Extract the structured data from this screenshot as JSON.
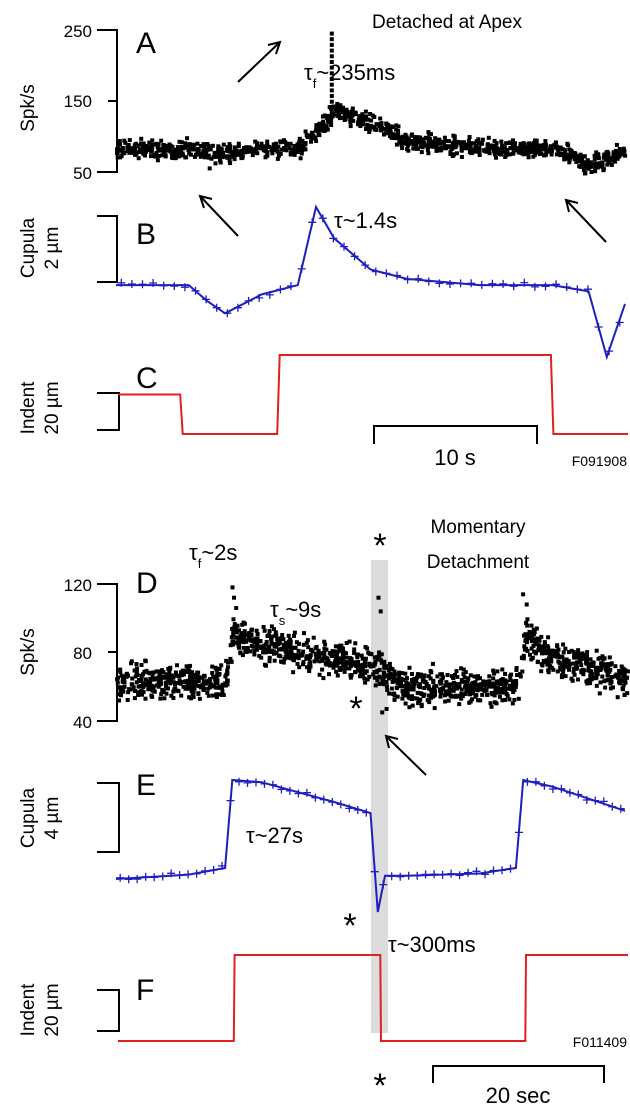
{
  "figure": {
    "top": {
      "title": "Detached at Apex",
      "code": "F091908",
      "scalebar_label": "10 s",
      "panels": {
        "A": {
          "letter": "A",
          "ylabel": "Spk/s",
          "yticks": [
            "250",
            "150",
            "50"
          ],
          "annotation_main": "τ",
          "annotation_sub": "f",
          "annotation_rest": "~235ms"
        },
        "B": {
          "letter": "B",
          "ylabel": "Cupula",
          "scale": "2 µm",
          "annotation": "τ~1.4s"
        },
        "C": {
          "letter": "C",
          "ylabel": "Indent",
          "scale": "20 µm"
        }
      }
    },
    "bottom": {
      "title_line1": "Momentary",
      "title_line2": "Detachment",
      "code": "F011409",
      "scalebar_label": "20 sec",
      "panels": {
        "D": {
          "letter": "D",
          "ylabel": "Spk/s",
          "yticks": [
            "120",
            "80",
            "40"
          ],
          "tf_main": "τ",
          "tf_sub": "f",
          "tf_rest": "~2s",
          "ts_main": "τ",
          "ts_sub": "s",
          "ts_rest": "~9s"
        },
        "E": {
          "letter": "E",
          "ylabel": "Cupula",
          "scale": "4 µm",
          "annotation_slow": "τ~27s",
          "annotation_fast": "τ~300ms"
        },
        "F": {
          "letter": "F",
          "ylabel": "Indent",
          "scale": "20 µm"
        }
      },
      "marker": "*"
    },
    "colors": {
      "spikes": "#000000",
      "cupula": "#1f1fbf",
      "indent": "#e02020",
      "marker": "#1a9a1a",
      "shade": "#dcdcdc"
    }
  },
  "chart_data": [
    {
      "type": "scatter",
      "panel": "A",
      "title": "Detached at Apex",
      "ylabel": "Spk/s",
      "ylim": [
        50,
        250
      ],
      "x_unit": "s",
      "x": [
        0,
        2,
        4,
        5,
        6,
        8,
        10,
        12,
        14,
        16,
        18,
        20,
        22,
        24,
        26,
        28
      ],
      "series": [
        {
          "values": [
            82,
            82,
            82,
            80,
            74,
            82,
            82,
            135,
            120,
            92,
            88,
            84,
            82,
            82,
            60,
            80
          ]
        }
      ],
      "peak": 245,
      "dips": [
        55,
        48
      ]
    },
    {
      "type": "line",
      "panel": "B",
      "ylabel": "Cupula",
      "x_unit": "s",
      "x": [
        0,
        2,
        4,
        5,
        6,
        8,
        10,
        11,
        12,
        14,
        16,
        18,
        20,
        22,
        24,
        26,
        27,
        28
      ],
      "series": [
        {
          "values": [
            0,
            0,
            0,
            -0.5,
            -0.9,
            -0.3,
            0,
            2.5,
            1.5,
            0.5,
            0.2,
            0.1,
            0,
            0,
            0,
            -0.2,
            -2.3,
            -0.6
          ]
        }
      ]
    },
    {
      "type": "line",
      "panel": "C",
      "ylabel": "Indent",
      "x_unit": "s",
      "x": [
        0,
        2.5,
        2.6,
        6.4,
        6.5,
        17.4,
        17.5,
        20.5
      ],
      "series": [
        {
          "values": [
            10,
            10,
            0,
            0,
            20,
            20,
            0,
            0
          ]
        }
      ]
    },
    {
      "type": "scatter",
      "panel": "D",
      "title": "Momentary Detachment",
      "ylabel": "Spk/s",
      "ylim": [
        40,
        120
      ],
      "x_unit": "s",
      "x": [
        0,
        10,
        15,
        16,
        20,
        30,
        35,
        38,
        40,
        50,
        55,
        56,
        60,
        70
      ],
      "series": [
        {
          "values": [
            63,
            63,
            63,
            90,
            84,
            76,
            72,
            62,
            60,
            60,
            60,
            88,
            76,
            66
          ]
        }
      ]
    },
    {
      "type": "line",
      "panel": "E",
      "ylabel": "Cupula",
      "x_unit": "s",
      "x": [
        0,
        10,
        15,
        16,
        20,
        30,
        35,
        36,
        37,
        40,
        50,
        55,
        56,
        60,
        70
      ],
      "series": [
        {
          "values": [
            0,
            0.4,
            1,
            9,
            8.8,
            7,
            6,
            -3,
            0.3,
            0.3,
            0.5,
            1,
            9,
            8.4,
            6.2
          ]
        }
      ]
    },
    {
      "type": "line",
      "panel": "F",
      "ylabel": "Indent",
      "x_unit": "s",
      "x": [
        0,
        15.9,
        16,
        36,
        36.1,
        55.9,
        56,
        70
      ],
      "series": [
        {
          "values": [
            0,
            0,
            20,
            20,
            0,
            0,
            20,
            20
          ]
        }
      ]
    }
  ]
}
